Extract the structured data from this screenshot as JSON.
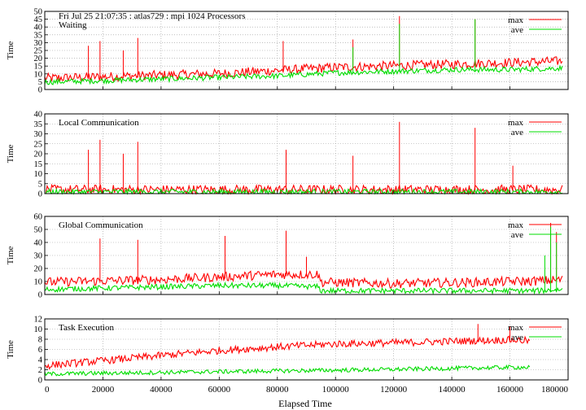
{
  "figure": {
    "header": "Fri Jul 25 21:07:35 : atlas729 : mpi 1024 Processors",
    "xlabel": "Elapsed Time",
    "xticks": [
      "0",
      "20000",
      "40000",
      "60000",
      "80000",
      "100000",
      "120000",
      "140000",
      "160000",
      "180000"
    ]
  },
  "colors": {
    "max": "#ff0000",
    "ave": "#00dd00",
    "grid": "#999999",
    "axis": "#000000"
  },
  "chart_data": [
    {
      "type": "line",
      "title": "Waiting",
      "ylabel": "Time",
      "xlim": [
        0,
        180000
      ],
      "ylim": [
        0,
        50
      ],
      "yticks": [
        "0",
        "5",
        "10",
        "15",
        "20",
        "25",
        "30",
        "35",
        "40",
        "45",
        "50"
      ],
      "grid": true,
      "legend": "top-right",
      "series": [
        {
          "name": "max",
          "color": "#ff0000",
          "x": [
            0,
            20000,
            40000,
            60000,
            80000,
            100000,
            120000,
            140000,
            160000,
            178000
          ],
          "y": [
            6,
            7,
            8,
            9,
            11,
            13,
            14,
            15,
            16,
            17
          ],
          "spikes": [
            [
              15000,
              28
            ],
            [
              19000,
              31
            ],
            [
              27000,
              25
            ],
            [
              32000,
              33
            ],
            [
              82000,
              31
            ],
            [
              106000,
              32
            ],
            [
              122000,
              47
            ],
            [
              148000,
              45
            ]
          ]
        },
        {
          "name": "ave",
          "color": "#00dd00",
          "x": [
            0,
            20000,
            40000,
            60000,
            80000,
            100000,
            120000,
            140000,
            160000,
            178000
          ],
          "y": [
            4,
            5,
            6,
            7,
            8,
            10,
            11,
            12,
            12,
            13
          ],
          "spikes": [
            [
              122000,
              42
            ],
            [
              148000,
              45
            ],
            [
              106000,
              27
            ]
          ]
        }
      ]
    },
    {
      "type": "line",
      "title": "Local Communication",
      "ylabel": "Time",
      "xlim": [
        0,
        180000
      ],
      "ylim": [
        0,
        40
      ],
      "yticks": [
        "0",
        "5",
        "10",
        "15",
        "20",
        "25",
        "30",
        "35",
        "40"
      ],
      "grid": true,
      "legend": "top-right",
      "series": [
        {
          "name": "max",
          "color": "#ff0000",
          "x": [
            0,
            40000,
            80000,
            120000,
            160000,
            178000
          ],
          "y": [
            1,
            1,
            1,
            1,
            1,
            1
          ],
          "spikes": [
            [
              15000,
              22
            ],
            [
              19000,
              27
            ],
            [
              27000,
              20
            ],
            [
              32000,
              26
            ],
            [
              83000,
              22
            ],
            [
              106000,
              19
            ],
            [
              122000,
              36
            ],
            [
              148000,
              33
            ],
            [
              161000,
              14
            ]
          ]
        },
        {
          "name": "ave",
          "color": "#00dd00",
          "x": [
            0,
            178000
          ],
          "y": [
            0.3,
            0.3
          ],
          "spikes": []
        }
      ]
    },
    {
      "type": "line",
      "title": "Global Communication",
      "ylabel": "Time",
      "xlim": [
        0,
        180000
      ],
      "ylim": [
        0,
        60
      ],
      "yticks": [
        "0",
        "10",
        "20",
        "30",
        "40",
        "50",
        "60"
      ],
      "grid": true,
      "legend": "top-right",
      "series": [
        {
          "name": "max",
          "color": "#ff0000",
          "x": [
            0,
            20000,
            40000,
            60000,
            80000,
            94000,
            95000,
            120000,
            150000,
            170000,
            178000
          ],
          "y": [
            8,
            9,
            10,
            12,
            14,
            14,
            8,
            7,
            8,
            9,
            10
          ],
          "spikes": [
            [
              19000,
              43
            ],
            [
              32000,
              42
            ],
            [
              62000,
              45
            ],
            [
              83000,
              49
            ],
            [
              90000,
              29
            ],
            [
              174000,
              55
            ],
            [
              176000,
              48
            ]
          ]
        },
        {
          "name": "ave",
          "color": "#00dd00",
          "x": [
            0,
            20000,
            40000,
            60000,
            80000,
            94000,
            95000,
            120000,
            150000,
            170000,
            178000
          ],
          "y": [
            3,
            4,
            5,
            6,
            6,
            5,
            2,
            2,
            2,
            2,
            3
          ],
          "spikes": [
            [
              174000,
              52
            ],
            [
              176000,
              40
            ],
            [
              172000,
              30
            ]
          ]
        }
      ]
    },
    {
      "type": "line",
      "title": "Task Execution",
      "ylabel": "Time",
      "xlim": [
        0,
        180000
      ],
      "ylim": [
        0,
        12
      ],
      "yticks": [
        "0",
        "2",
        "4",
        "6",
        "8",
        "10",
        "12"
      ],
      "grid": true,
      "legend": "top-right",
      "series": [
        {
          "name": "max",
          "color": "#ff0000",
          "x": [
            0,
            20000,
            40000,
            60000,
            80000,
            100000,
            120000,
            140000,
            160000,
            167000
          ],
          "y": [
            2.5,
            3.5,
            4.5,
            5.5,
            6.2,
            6.8,
            7.0,
            7.3,
            7.6,
            7.4
          ],
          "spikes": [
            [
              149000,
              11
            ],
            [
              160000,
              10.5
            ]
          ]
        },
        {
          "name": "ave",
          "color": "#00dd00",
          "x": [
            0,
            40000,
            80000,
            120000,
            160000,
            167000
          ],
          "y": [
            1.0,
            1.3,
            1.6,
            1.9,
            2.3,
            2.3
          ],
          "spikes": []
        }
      ]
    }
  ]
}
